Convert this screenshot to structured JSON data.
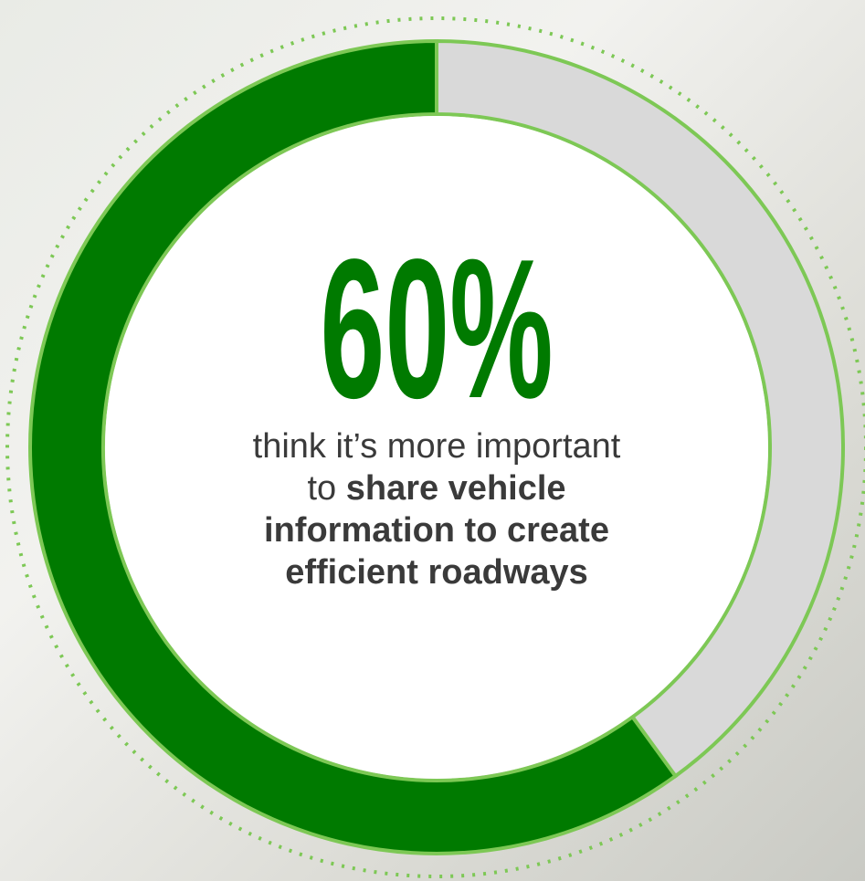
{
  "chart_data": {
    "type": "donut",
    "values": [
      60,
      40
    ],
    "value_labels": [
      "60%",
      null
    ],
    "colors": [
      "#007a00",
      "#d9d9d9"
    ],
    "caption": {
      "lead": "think it’s more important to",
      "emphasis": "share vehicle information to create efficient roadways"
    }
  }
}
